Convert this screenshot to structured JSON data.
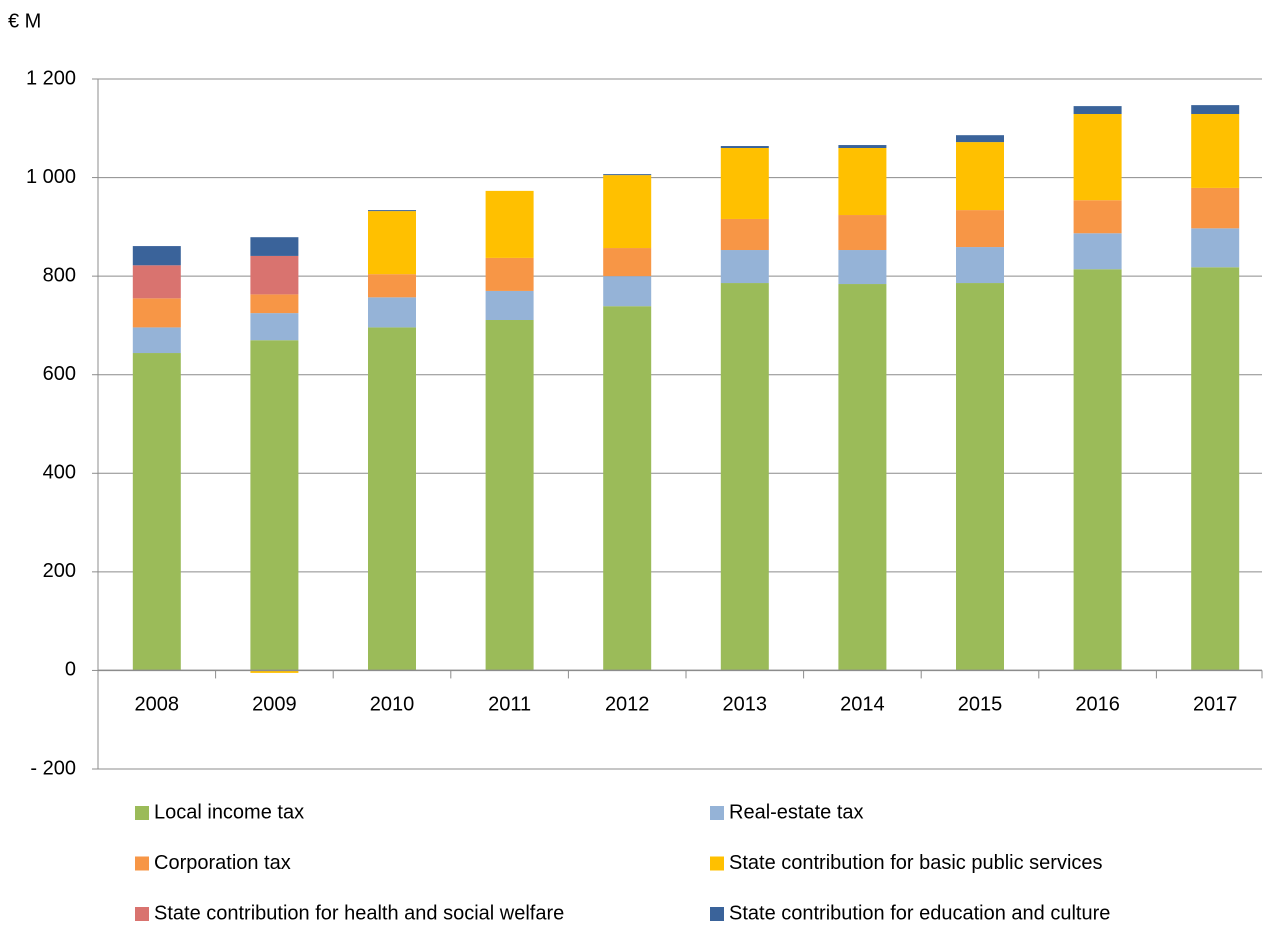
{
  "chart_data": {
    "type": "stacked_bar",
    "y_label": "€ M",
    "categories": [
      "2008",
      "2009",
      "2010",
      "2011",
      "2012",
      "2013",
      "2014",
      "2015",
      "2016",
      "2017"
    ],
    "series": [
      {
        "name": "Local income tax",
        "color": "#9bbb59",
        "values": [
          644,
          670,
          696,
          711,
          739,
          786,
          784,
          786,
          814,
          818
        ]
      },
      {
        "name": "Real-estate tax",
        "color": "#95b3d7",
        "values": [
          52,
          55,
          61,
          59,
          61,
          67,
          69,
          73,
          73,
          79
        ]
      },
      {
        "name": "Corporation tax",
        "color": "#f79646",
        "values": [
          59,
          38,
          47,
          67,
          57,
          63,
          71,
          75,
          67,
          82
        ]
      },
      {
        "name": "State contribution for basic public services",
        "color": "#ffc000",
        "values": [
          0,
          -5,
          128,
          136,
          148,
          144,
          136,
          138,
          175,
          150
        ]
      },
      {
        "name": "State contribution for health and social welfare",
        "color": "#d9736f",
        "values": [
          67,
          78,
          0,
          0,
          0,
          0,
          0,
          0,
          0,
          0
        ]
      },
      {
        "name": "State contribution for education and culture",
        "color": "#3a639a",
        "values": [
          39,
          38,
          2,
          0,
          2,
          4,
          6,
          14,
          16,
          18
        ]
      }
    ],
    "ylim": [
      -200,
      1200
    ],
    "yticks": [
      {
        "value": -200,
        "label": "- 200"
      },
      0,
      200,
      400,
      600,
      800,
      {
        "value": 1000,
        "label": "1 000"
      },
      {
        "value": 1200,
        "label": "1 200"
      }
    ],
    "grid": true,
    "legend": "bottom"
  }
}
